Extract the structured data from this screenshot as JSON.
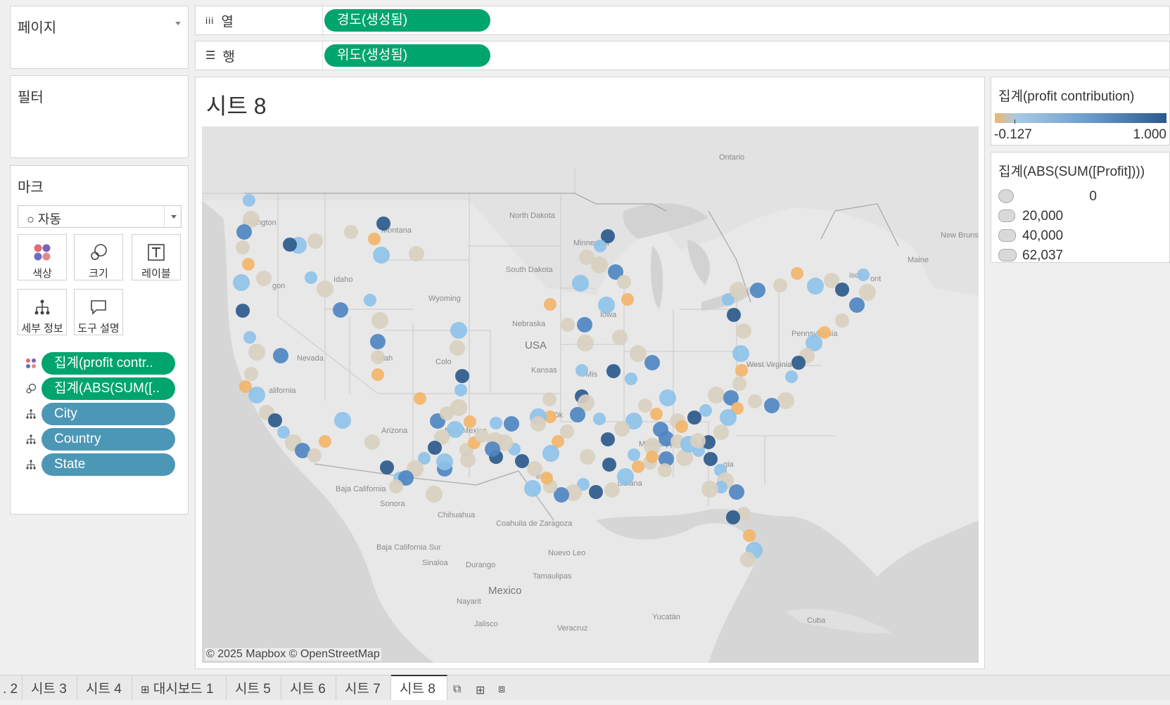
{
  "left": {
    "pages_title": "페이지",
    "filters_title": "필터",
    "marks_title": "마크",
    "mark_type": "○ 자동",
    "mark_buttons": [
      {
        "label": "색상",
        "icon": "color-dots-icon"
      },
      {
        "label": "크기",
        "icon": "size-circles-icon"
      },
      {
        "label": "레이블",
        "icon": "label-t-icon"
      },
      {
        "label": "세부 정보",
        "icon": "detail-hierarchy-icon"
      },
      {
        "label": "도구 설명",
        "icon": "tooltip-bubble-icon"
      }
    ],
    "fields": [
      {
        "label": "집계(profit contr..",
        "type": "color",
        "color": "#00a56e"
      },
      {
        "label": "집계(ABS(SUM([..",
        "type": "size",
        "color": "#00a56e"
      },
      {
        "label": "City",
        "type": "detail",
        "color": "#4d97b6"
      },
      {
        "label": "Country",
        "type": "detail",
        "color": "#4d97b6"
      },
      {
        "label": "State",
        "type": "detail",
        "color": "#4d97b6"
      }
    ]
  },
  "shelves": {
    "columns_label": "열",
    "columns_pill": "경도(생성됨)",
    "rows_label": "행",
    "rows_pill": "위도(생성됨)"
  },
  "sheet": {
    "title": "시트 8",
    "attribution": "© 2025 Mapbox © OpenStreetMap"
  },
  "map_labels": [
    "Ontario",
    "ashington",
    "Montana",
    "North Dakota",
    "Minnesota",
    "New Brunswi",
    "Maine",
    "gon",
    "Idaho",
    "South Dakota",
    "Wyoming",
    "Nebraska",
    "USA",
    "Iowa",
    "Pennsylvania",
    "Nevada",
    "Utah",
    "Colo",
    "Kansas",
    "Mis",
    "West Virginia",
    "alifornia",
    "Ok",
    "see",
    "Arizona",
    "New Mexico",
    "Mississippi",
    "exas",
    "uisiana",
    "gia",
    "Baja California",
    "Sonora",
    "Chihuahua",
    "Coahuila de Zaragoza",
    "Baja California Sur",
    "Nuevo Leo",
    "Sinaloa",
    "Durango",
    "Tamaulipas",
    "Mexico",
    "Nayarit",
    "Jalisco",
    "Veracruz",
    "Yucatán",
    "Cuba",
    "ont",
    "isco"
  ],
  "legend_color": {
    "title": "집계(profit contribution)",
    "min": "-0.127",
    "max": "1.000",
    "gradient": [
      "#f2b56a",
      "#a9cbe5",
      "#2b5a8c"
    ]
  },
  "legend_size": {
    "title": "집계(ABS(SUM([Profit])))",
    "items": [
      "0",
      "20,000",
      "40,000",
      "62,037"
    ]
  },
  "tabs": [
    ". 2",
    "시트 3",
    "시트 4",
    "대시보드 1",
    "시트 5",
    "시트 6",
    "시트 7",
    "시트 8"
  ],
  "active_tab": "시트 8",
  "colors": {
    "accent_green": "#00a56e",
    "accent_teal": "#4d97b6",
    "beige": "#d8cfbf",
    "light_blue": "#8ec2e8",
    "mid_blue": "#4f86c2",
    "dark_blue": "#2b5a8c",
    "orange": "#f2b56a"
  }
}
